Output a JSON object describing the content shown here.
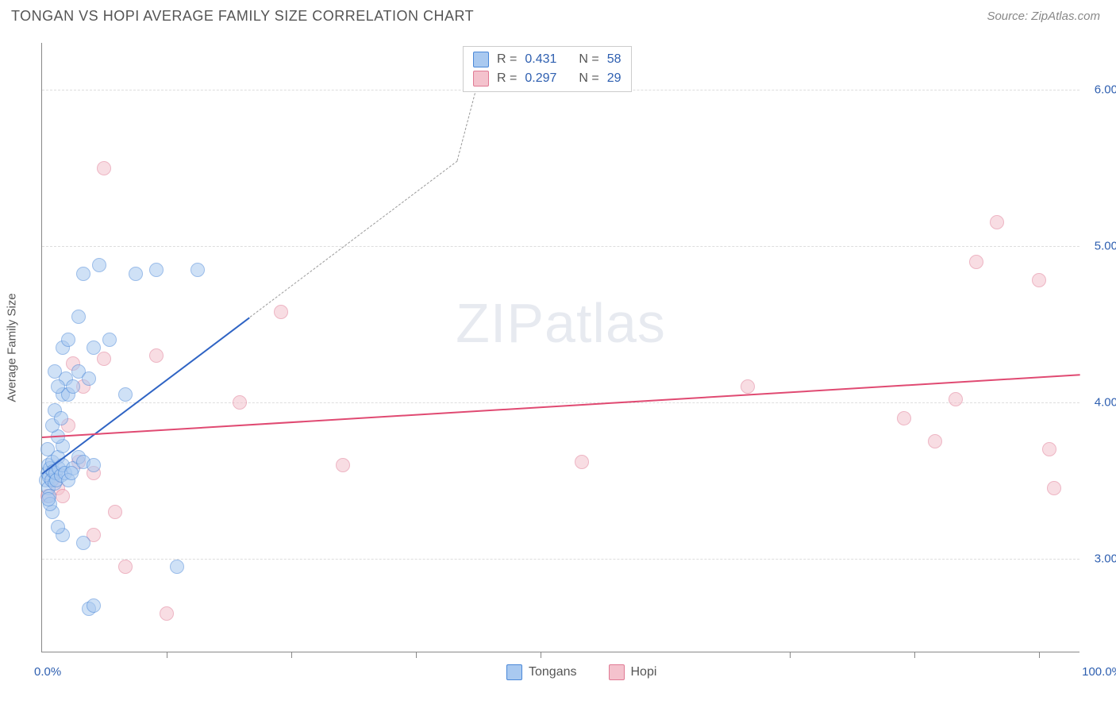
{
  "title": "TONGAN VS HOPI AVERAGE FAMILY SIZE CORRELATION CHART",
  "source": "Source: ZipAtlas.com",
  "chart": {
    "type": "scatter",
    "y_axis_title": "Average Family Size",
    "xlim": [
      0,
      100
    ],
    "ylim": [
      2.4,
      6.3
    ],
    "x_axis_labels": {
      "left": "0.0%",
      "right": "100.0%"
    },
    "y_ticks": [
      3.0,
      4.0,
      5.0,
      6.0
    ],
    "y_tick_labels": [
      "3.00",
      "4.00",
      "5.00",
      "6.00"
    ],
    "x_ticks_pct": [
      12,
      24,
      36,
      48,
      72,
      84,
      96
    ],
    "grid_color": "#dddddd",
    "axis_line_color": "#888888",
    "label_color": "#2e5fb0",
    "background_color": "#ffffff",
    "marker_radius": 9,
    "marker_opacity": 0.55,
    "series": {
      "tongans": {
        "label": "Tongans",
        "fill": "#a9c9f0",
        "stroke": "#4a88d8",
        "trend": {
          "x1": 0,
          "y1": 3.55,
          "x2": 20,
          "y2": 4.55,
          "dash_to_x": 40,
          "dash_to_y": 5.55,
          "color": "#2f64c4",
          "width": 2
        },
        "points": [
          [
            0.4,
            3.5
          ],
          [
            0.5,
            3.55
          ],
          [
            0.6,
            3.6
          ],
          [
            0.7,
            3.52
          ],
          [
            0.5,
            3.7
          ],
          [
            0.8,
            3.58
          ],
          [
            0.6,
            3.45
          ],
          [
            0.9,
            3.5
          ],
          [
            1.0,
            3.62
          ],
          [
            1.2,
            3.48
          ],
          [
            1.1,
            3.56
          ],
          [
            0.7,
            3.4
          ],
          [
            1.3,
            3.55
          ],
          [
            1.5,
            3.65
          ],
          [
            1.4,
            3.5
          ],
          [
            1.6,
            3.58
          ],
          [
            1.8,
            3.53
          ],
          [
            2.0,
            3.6
          ],
          [
            2.2,
            3.55
          ],
          [
            2.0,
            3.72
          ],
          [
            1.5,
            3.78
          ],
          [
            1.0,
            3.85
          ],
          [
            1.2,
            3.95
          ],
          [
            1.8,
            3.9
          ],
          [
            3.0,
            3.58
          ],
          [
            3.5,
            3.65
          ],
          [
            2.5,
            3.5
          ],
          [
            2.8,
            3.55
          ],
          [
            3.5,
            4.2
          ],
          [
            4.0,
            3.62
          ],
          [
            4.5,
            4.15
          ],
          [
            5.0,
            3.6
          ],
          [
            2.0,
            4.05
          ],
          [
            2.3,
            4.15
          ],
          [
            2.5,
            4.05
          ],
          [
            3.0,
            4.1
          ],
          [
            1.5,
            4.1
          ],
          [
            1.2,
            4.2
          ],
          [
            2.0,
            4.35
          ],
          [
            2.5,
            4.4
          ],
          [
            5.0,
            4.35
          ],
          [
            6.5,
            4.4
          ],
          [
            8.0,
            4.05
          ],
          [
            3.5,
            4.55
          ],
          [
            4.0,
            4.82
          ],
          [
            5.5,
            4.88
          ],
          [
            9.0,
            4.82
          ],
          [
            11.0,
            4.85
          ],
          [
            15.0,
            4.85
          ],
          [
            4.5,
            2.68
          ],
          [
            5.0,
            2.7
          ],
          [
            13.0,
            2.95
          ],
          [
            4.0,
            3.1
          ],
          [
            2.0,
            3.15
          ],
          [
            1.5,
            3.2
          ],
          [
            1.0,
            3.3
          ],
          [
            0.8,
            3.35
          ],
          [
            0.6,
            3.38
          ]
        ]
      },
      "hopi": {
        "label": "Hopi",
        "fill": "#f4c2cd",
        "stroke": "#e07a94",
        "trend": {
          "x1": 0,
          "y1": 3.78,
          "x2": 100,
          "y2": 4.18,
          "color": "#e04a72",
          "width": 2
        },
        "points": [
          [
            0.5,
            3.4
          ],
          [
            1.0,
            3.5
          ],
          [
            1.5,
            3.45
          ],
          [
            2.0,
            3.4
          ],
          [
            2.5,
            3.85
          ],
          [
            3.0,
            4.25
          ],
          [
            3.5,
            3.62
          ],
          [
            4.0,
            4.1
          ],
          [
            5.0,
            3.55
          ],
          [
            6.0,
            4.28
          ],
          [
            7.0,
            3.3
          ],
          [
            8.0,
            2.95
          ],
          [
            5.0,
            3.15
          ],
          [
            6.0,
            5.5
          ],
          [
            11.0,
            4.3
          ],
          [
            12.0,
            2.65
          ],
          [
            19.0,
            4.0
          ],
          [
            23.0,
            4.58
          ],
          [
            29.0,
            3.6
          ],
          [
            52.0,
            3.62
          ],
          [
            68.0,
            4.1
          ],
          [
            83.0,
            3.9
          ],
          [
            86.0,
            3.75
          ],
          [
            88.0,
            4.02
          ],
          [
            90.0,
            4.9
          ],
          [
            92.0,
            5.15
          ],
          [
            96.0,
            4.78
          ],
          [
            97.0,
            3.7
          ],
          [
            97.5,
            3.45
          ]
        ]
      }
    },
    "stats_box": {
      "rows": [
        {
          "series": "tongans",
          "r_label": "R =",
          "r_value": "0.431",
          "n_label": "N =",
          "n_value": "58"
        },
        {
          "series": "hopi",
          "r_label": "R =",
          "r_value": "0.297",
          "n_label": "N =",
          "n_value": "29"
        }
      ]
    },
    "watermark": {
      "prefix": "ZIP",
      "suffix": "atlas"
    }
  }
}
